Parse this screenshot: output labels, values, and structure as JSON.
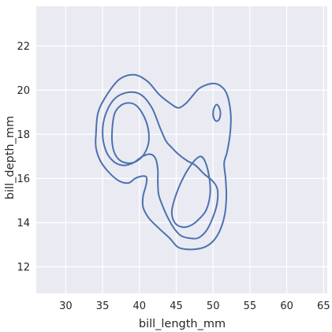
{
  "chart_data": {
    "type": "contour",
    "title": "",
    "xlabel": "bill_length_mm",
    "ylabel": "bill_depth_mm",
    "xlim": [
      26,
      65.5
    ],
    "ylim": [
      10.8,
      23.8
    ],
    "xticks": [
      30,
      35,
      40,
      45,
      50,
      55,
      60,
      65
    ],
    "yticks": [
      12,
      14,
      16,
      18,
      20,
      22
    ],
    "grid": true,
    "colors": {
      "background": "#eaeaf2",
      "grid": "#ffffff",
      "line": "#4c72b0"
    },
    "contours": [
      {
        "name": "",
        "points": [
          [
            34.1,
            18.0
          ],
          [
            34.4,
            19.0
          ],
          [
            35.6,
            19.8
          ],
          [
            37.3,
            20.5
          ],
          [
            39.3,
            20.7
          ],
          [
            41.1,
            20.4
          ],
          [
            42.7,
            19.8
          ],
          [
            44.2,
            19.4
          ],
          [
            45.3,
            19.2
          ],
          [
            46.3,
            19.4
          ],
          [
            47.1,
            19.7
          ],
          [
            48.2,
            20.1
          ],
          [
            49.8,
            20.3
          ],
          [
            51.0,
            20.2
          ],
          [
            51.9,
            19.8
          ],
          [
            52.4,
            18.9
          ],
          [
            52.3,
            18.0
          ],
          [
            51.9,
            17.2
          ],
          [
            51.5,
            16.7
          ],
          [
            51.7,
            16.0
          ],
          [
            51.8,
            15.2
          ],
          [
            51.6,
            14.4
          ],
          [
            51.0,
            13.7
          ],
          [
            50.1,
            13.2
          ],
          [
            48.9,
            12.9
          ],
          [
            47.6,
            12.8
          ],
          [
            46.3,
            12.8
          ],
          [
            45.2,
            12.9
          ],
          [
            44.1,
            13.3
          ],
          [
            42.8,
            13.7
          ],
          [
            41.3,
            14.2
          ],
          [
            40.5,
            14.7
          ],
          [
            40.5,
            15.2
          ],
          [
            40.9,
            15.7
          ],
          [
            41.0,
            16.0
          ],
          [
            40.8,
            16.1
          ],
          [
            40.2,
            16.1
          ],
          [
            39.4,
            16.0
          ],
          [
            38.5,
            15.8
          ],
          [
            37.2,
            15.9
          ],
          [
            35.8,
            16.3
          ],
          [
            34.7,
            16.8
          ],
          [
            34.1,
            17.4
          ],
          [
            34.1,
            18.0
          ]
        ]
      },
      {
        "name": "",
        "points": [
          [
            35.0,
            18.1
          ],
          [
            35.4,
            18.9
          ],
          [
            36.6,
            19.6
          ],
          [
            38.4,
            19.9
          ],
          [
            40.2,
            19.8
          ],
          [
            41.7,
            19.2
          ],
          [
            42.8,
            18.3
          ],
          [
            43.6,
            17.7
          ],
          [
            44.4,
            17.4
          ],
          [
            45.3,
            17.1
          ],
          [
            46.5,
            16.8
          ],
          [
            47.6,
            16.6
          ],
          [
            48.8,
            16.2
          ],
          [
            49.9,
            15.9
          ],
          [
            50.6,
            15.5
          ],
          [
            50.5,
            14.8
          ],
          [
            49.8,
            14.1
          ],
          [
            49.0,
            13.6
          ],
          [
            47.9,
            13.3
          ],
          [
            46.8,
            13.3
          ],
          [
            45.7,
            13.4
          ],
          [
            44.8,
            13.7
          ],
          [
            43.9,
            14.2
          ],
          [
            43.1,
            14.8
          ],
          [
            42.6,
            15.3
          ],
          [
            42.5,
            15.9
          ],
          [
            42.5,
            16.4
          ],
          [
            42.2,
            16.9
          ],
          [
            41.5,
            17.1
          ],
          [
            40.4,
            17.0
          ],
          [
            39.1,
            16.7
          ],
          [
            37.7,
            16.6
          ],
          [
            36.4,
            16.8
          ],
          [
            35.4,
            17.3
          ],
          [
            35.0,
            18.1
          ]
        ]
      },
      {
        "name": "",
        "points": [
          [
            36.3,
            18.2
          ],
          [
            36.7,
            19.0
          ],
          [
            38.0,
            19.4
          ],
          [
            39.6,
            19.3
          ],
          [
            40.9,
            18.6
          ],
          [
            41.3,
            17.8
          ],
          [
            40.8,
            17.2
          ],
          [
            39.7,
            16.8
          ],
          [
            38.3,
            16.7
          ],
          [
            37.1,
            16.9
          ],
          [
            36.4,
            17.4
          ],
          [
            36.3,
            18.2
          ]
        ]
      },
      {
        "name": "",
        "points": [
          [
            44.4,
            14.5
          ],
          [
            44.9,
            15.2
          ],
          [
            45.9,
            16.0
          ],
          [
            47.2,
            16.7
          ],
          [
            48.3,
            17.0
          ],
          [
            49.0,
            16.7
          ],
          [
            49.5,
            16.0
          ],
          [
            49.6,
            15.3
          ],
          [
            49.1,
            14.6
          ],
          [
            48.2,
            14.2
          ],
          [
            47.1,
            13.9
          ],
          [
            45.9,
            13.8
          ],
          [
            44.8,
            14.0
          ],
          [
            44.4,
            14.5
          ]
        ]
      },
      {
        "name": "",
        "points": [
          [
            50.0,
            18.95
          ],
          [
            50.15,
            19.2
          ],
          [
            50.5,
            19.35
          ],
          [
            50.85,
            19.2
          ],
          [
            51.0,
            18.95
          ],
          [
            50.85,
            18.7
          ],
          [
            50.5,
            18.6
          ],
          [
            50.15,
            18.7
          ],
          [
            50.0,
            18.95
          ]
        ]
      }
    ]
  }
}
